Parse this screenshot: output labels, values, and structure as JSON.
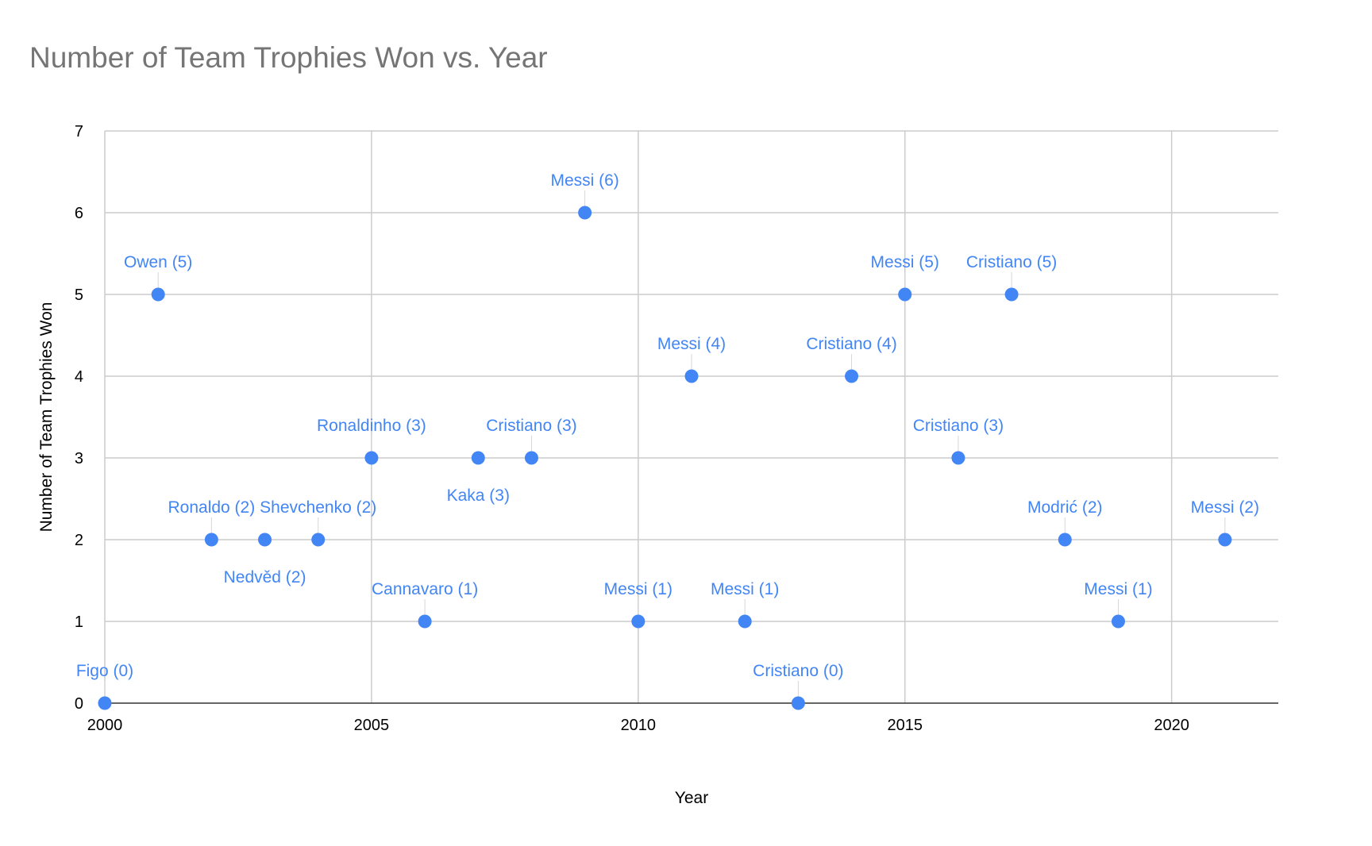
{
  "chart_data": {
    "type": "scatter",
    "title": "Number of Team Trophies Won vs. Year",
    "xlabel": "Year",
    "ylabel": "Number of Team Trophies Won",
    "xlim": [
      2000,
      2022
    ],
    "ylim": [
      0,
      7
    ],
    "x_ticks": [
      2000,
      2005,
      2010,
      2015,
      2020
    ],
    "y_ticks": [
      0,
      1,
      2,
      3,
      4,
      5,
      6,
      7
    ],
    "grid": true,
    "point_color": "#4285f4",
    "label_color": "#4285f4",
    "points": [
      {
        "x": 2000,
        "y": 0,
        "label": "Figo (0)",
        "label_pos": "above"
      },
      {
        "x": 2001,
        "y": 5,
        "label": "Owen (5)",
        "label_pos": "above"
      },
      {
        "x": 2002,
        "y": 2,
        "label": "Ronaldo (2)",
        "label_pos": "above"
      },
      {
        "x": 2003,
        "y": 2,
        "label": "Nedvěd (2)",
        "label_pos": "below"
      },
      {
        "x": 2004,
        "y": 2,
        "label": "Shevchenko (2)",
        "label_pos": "above"
      },
      {
        "x": 2005,
        "y": 3,
        "label": "Ronaldinho (3)",
        "label_pos": "above"
      },
      {
        "x": 2006,
        "y": 1,
        "label": "Cannavaro (1)",
        "label_pos": "above"
      },
      {
        "x": 2007,
        "y": 3,
        "label": "Kaka (3)",
        "label_pos": "below"
      },
      {
        "x": 2008,
        "y": 3,
        "label": "Cristiano (3)",
        "label_pos": "above"
      },
      {
        "x": 2009,
        "y": 6,
        "label": "Messi (6)",
        "label_pos": "above"
      },
      {
        "x": 2010,
        "y": 1,
        "label": "Messi (1)",
        "label_pos": "above"
      },
      {
        "x": 2011,
        "y": 4,
        "label": "Messi (4)",
        "label_pos": "above"
      },
      {
        "x": 2012,
        "y": 1,
        "label": "Messi (1)",
        "label_pos": "above"
      },
      {
        "x": 2013,
        "y": 0,
        "label": "Cristiano (0)",
        "label_pos": "above"
      },
      {
        "x": 2014,
        "y": 4,
        "label": "Cristiano (4)",
        "label_pos": "above"
      },
      {
        "x": 2015,
        "y": 5,
        "label": "Messi (5)",
        "label_pos": "above"
      },
      {
        "x": 2016,
        "y": 3,
        "label": "Cristiano (3)",
        "label_pos": "above"
      },
      {
        "x": 2017,
        "y": 5,
        "label": "Cristiano (5)",
        "label_pos": "above"
      },
      {
        "x": 2018,
        "y": 2,
        "label": "Modrić (2)",
        "label_pos": "above"
      },
      {
        "x": 2019,
        "y": 1,
        "label": "Messi (1)",
        "label_pos": "above"
      },
      {
        "x": 2021,
        "y": 2,
        "label": "Messi (2)",
        "label_pos": "above"
      }
    ]
  }
}
